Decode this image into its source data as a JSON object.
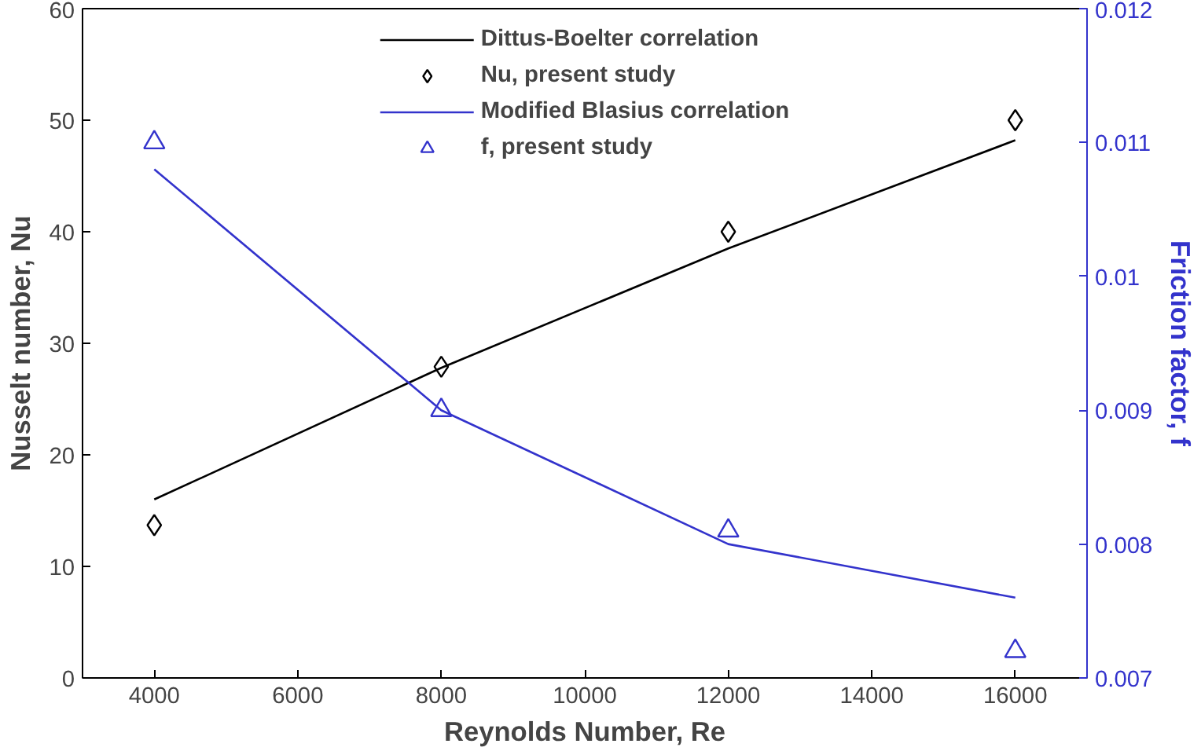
{
  "chart_data": {
    "type": "line",
    "xlabel": "Reynolds Number, Re",
    "ylabel": "Nusselt number, Nu",
    "y2label": "Friction factor, f",
    "x": [
      4000,
      8000,
      12000,
      16000
    ],
    "series": [
      {
        "name": "Dittus-Boelter correlation",
        "color": "#000000",
        "values": [
          16,
          27.8,
          38.5,
          48.2
        ]
      },
      {
        "name": "Nu, present study",
        "type": "scatter",
        "marker": "diamond",
        "color": "#000000",
        "values": [
          13.7,
          27.9,
          40,
          50
        ]
      },
      {
        "name": "Modified Blasius correlation",
        "axis": "y2",
        "color": "#3333cc",
        "values": [
          0.0108,
          0.009,
          0.008,
          0.0076
        ]
      },
      {
        "name": "f, present study",
        "type": "scatter",
        "marker": "triangle",
        "axis": "y2",
        "color": "#3333cc",
        "values": [
          0.011,
          0.009,
          0.0081,
          0.0072
        ]
      }
    ],
    "xlim": [
      3000,
      17000
    ],
    "xticks": [
      4000,
      6000,
      8000,
      10000,
      12000,
      14000,
      16000
    ],
    "ylim": [
      0,
      60
    ],
    "yticks": [
      0,
      10,
      20,
      30,
      40,
      50,
      60
    ],
    "y2lim": [
      0.007,
      0.012
    ],
    "y2ticks": [
      0.007,
      0.008,
      0.009,
      0.01,
      0.011,
      0.012
    ],
    "grid": false,
    "legend": "top"
  }
}
